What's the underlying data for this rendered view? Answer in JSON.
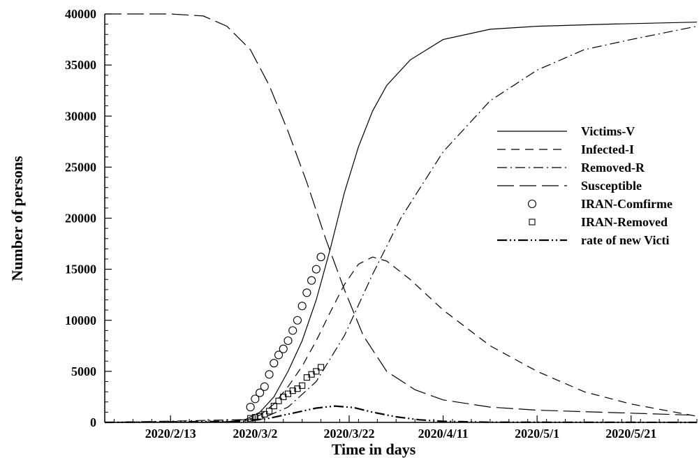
{
  "chart_data": {
    "type": "line",
    "xlabel": "Time in days",
    "ylabel": "Number of persons",
    "ylim": [
      0,
      40000
    ],
    "xlim": [
      "2020-01-30",
      "2020-06-04"
    ],
    "grid": false,
    "legend_position": "right-middle",
    "y_ticks": [
      "0",
      "5000",
      "10000",
      "15000",
      "20000",
      "25000",
      "30000",
      "35000",
      "40000"
    ],
    "x_ticks": [
      {
        "date": "2020-02-13",
        "label": "2020/2/13"
      },
      {
        "date": "2020-03-02",
        "label": "2020/3/2"
      },
      {
        "date": "2020-03-22",
        "label": "2020/3/22"
      },
      {
        "date": "2020-04-11",
        "label": "2020/4/11"
      },
      {
        "date": "2020-05-01",
        "label": "2020/5/1"
      },
      {
        "date": "2020-05-21",
        "label": "2020/5/21"
      }
    ],
    "series": [
      {
        "name": "Victims-V",
        "kind": "line",
        "dash": "solid",
        "points": [
          [
            "2020-01-30",
            0
          ],
          [
            "2020-02-23",
            30
          ],
          [
            "2020-02-26",
            100
          ],
          [
            "2020-02-29",
            300
          ],
          [
            "2020-03-03",
            1000
          ],
          [
            "2020-03-06",
            2500
          ],
          [
            "2020-03-09",
            5000
          ],
          [
            "2020-03-12",
            8000
          ],
          [
            "2020-03-15",
            12000
          ],
          [
            "2020-03-18",
            17000
          ],
          [
            "2020-03-21",
            22500
          ],
          [
            "2020-03-24",
            27000
          ],
          [
            "2020-03-27",
            30500
          ],
          [
            "2020-03-30",
            33000
          ],
          [
            "2020-04-04",
            35500
          ],
          [
            "2020-04-11",
            37500
          ],
          [
            "2020-04-21",
            38500
          ],
          [
            "2020-05-01",
            38800
          ],
          [
            "2020-05-16",
            39000
          ],
          [
            "2020-06-04",
            39200
          ]
        ]
      },
      {
        "name": "Infected-I",
        "kind": "line",
        "dash": "12,8",
        "points": [
          [
            "2020-01-30",
            0
          ],
          [
            "2020-02-23",
            20
          ],
          [
            "2020-02-29",
            200
          ],
          [
            "2020-03-03",
            700
          ],
          [
            "2020-03-06",
            1800
          ],
          [
            "2020-03-09",
            3500
          ],
          [
            "2020-03-12",
            5500
          ],
          [
            "2020-03-15",
            8000
          ],
          [
            "2020-03-18",
            10800
          ],
          [
            "2020-03-21",
            13500
          ],
          [
            "2020-03-24",
            15500
          ],
          [
            "2020-03-27",
            16200
          ],
          [
            "2020-03-30",
            15800
          ],
          [
            "2020-04-04",
            14000
          ],
          [
            "2020-04-11",
            11000
          ],
          [
            "2020-04-21",
            7500
          ],
          [
            "2020-05-01",
            5000
          ],
          [
            "2020-05-11",
            3000
          ],
          [
            "2020-05-21",
            1800
          ],
          [
            "2020-06-04",
            600
          ]
        ]
      },
      {
        "name": "Removed-R",
        "kind": "line",
        "dash": "14,5,2,5",
        "points": [
          [
            "2020-01-30",
            0
          ],
          [
            "2020-03-03",
            300
          ],
          [
            "2020-03-09",
            1500
          ],
          [
            "2020-03-15",
            4000
          ],
          [
            "2020-03-21",
            8500
          ],
          [
            "2020-03-27",
            14500
          ],
          [
            "2020-04-02",
            20000
          ],
          [
            "2020-04-11",
            26500
          ],
          [
            "2020-04-21",
            31500
          ],
          [
            "2020-05-01",
            34500
          ],
          [
            "2020-05-11",
            36500
          ],
          [
            "2020-05-21",
            37500
          ],
          [
            "2020-06-04",
            38800
          ]
        ]
      },
      {
        "name": "Susceptible",
        "kind": "line",
        "dash": "24,8",
        "points": [
          [
            "2020-01-30",
            40000
          ],
          [
            "2020-02-13",
            40000
          ],
          [
            "2020-02-20",
            39800
          ],
          [
            "2020-02-25",
            38800
          ],
          [
            "2020-03-01",
            36500
          ],
          [
            "2020-03-05",
            33000
          ],
          [
            "2020-03-09",
            28500
          ],
          [
            "2020-03-13",
            23500
          ],
          [
            "2020-03-17",
            18000
          ],
          [
            "2020-03-21",
            13000
          ],
          [
            "2020-03-25",
            8500
          ],
          [
            "2020-03-30",
            5000
          ],
          [
            "2020-04-05",
            3200
          ],
          [
            "2020-04-11",
            2200
          ],
          [
            "2020-04-21",
            1500
          ],
          [
            "2020-05-01",
            1200
          ],
          [
            "2020-05-21",
            900
          ],
          [
            "2020-06-04",
            700
          ]
        ]
      },
      {
        "name": "IRAN-Comfirme",
        "kind": "marker",
        "marker": "circle",
        "points": [
          [
            "2020-03-01",
            1500
          ],
          [
            "2020-03-02",
            2300
          ],
          [
            "2020-03-03",
            2900
          ],
          [
            "2020-03-04",
            3500
          ],
          [
            "2020-03-05",
            4700
          ],
          [
            "2020-03-06",
            5800
          ],
          [
            "2020-03-07",
            6600
          ],
          [
            "2020-03-08",
            7200
          ],
          [
            "2020-03-09",
            8000
          ],
          [
            "2020-03-10",
            9000
          ],
          [
            "2020-03-11",
            10000
          ],
          [
            "2020-03-12",
            11400
          ],
          [
            "2020-03-13",
            12700
          ],
          [
            "2020-03-14",
            13900
          ],
          [
            "2020-03-15",
            15000
          ],
          [
            "2020-03-16",
            16200
          ]
        ]
      },
      {
        "name": "IRAN-Removed",
        "kind": "marker",
        "marker": "square",
        "points": [
          [
            "2020-03-01",
            400
          ],
          [
            "2020-03-02",
            500
          ],
          [
            "2020-03-03",
            600
          ],
          [
            "2020-03-04",
            800
          ],
          [
            "2020-03-05",
            1100
          ],
          [
            "2020-03-06",
            1600
          ],
          [
            "2020-03-07",
            2100
          ],
          [
            "2020-03-08",
            2500
          ],
          [
            "2020-03-09",
            2800
          ],
          [
            "2020-03-10",
            3100
          ],
          [
            "2020-03-11",
            3300
          ],
          [
            "2020-03-12",
            3600
          ],
          [
            "2020-03-13",
            4400
          ],
          [
            "2020-03-14",
            4700
          ],
          [
            "2020-03-15",
            5000
          ],
          [
            "2020-03-16",
            5400
          ]
        ]
      },
      {
        "name": "rate of new Victi",
        "kind": "line",
        "dash": "14,4,2,4,2,4",
        "width": 2.2,
        "points": [
          [
            "2020-01-30",
            0
          ],
          [
            "2020-02-29",
            100
          ],
          [
            "2020-03-05",
            400
          ],
          [
            "2020-03-10",
            900
          ],
          [
            "2020-03-15",
            1400
          ],
          [
            "2020-03-19",
            1600
          ],
          [
            "2020-03-23",
            1450
          ],
          [
            "2020-03-27",
            1000
          ],
          [
            "2020-04-01",
            550
          ],
          [
            "2020-04-06",
            250
          ],
          [
            "2020-04-11",
            100
          ],
          [
            "2020-04-21",
            20
          ],
          [
            "2020-06-04",
            0
          ]
        ]
      }
    ]
  }
}
